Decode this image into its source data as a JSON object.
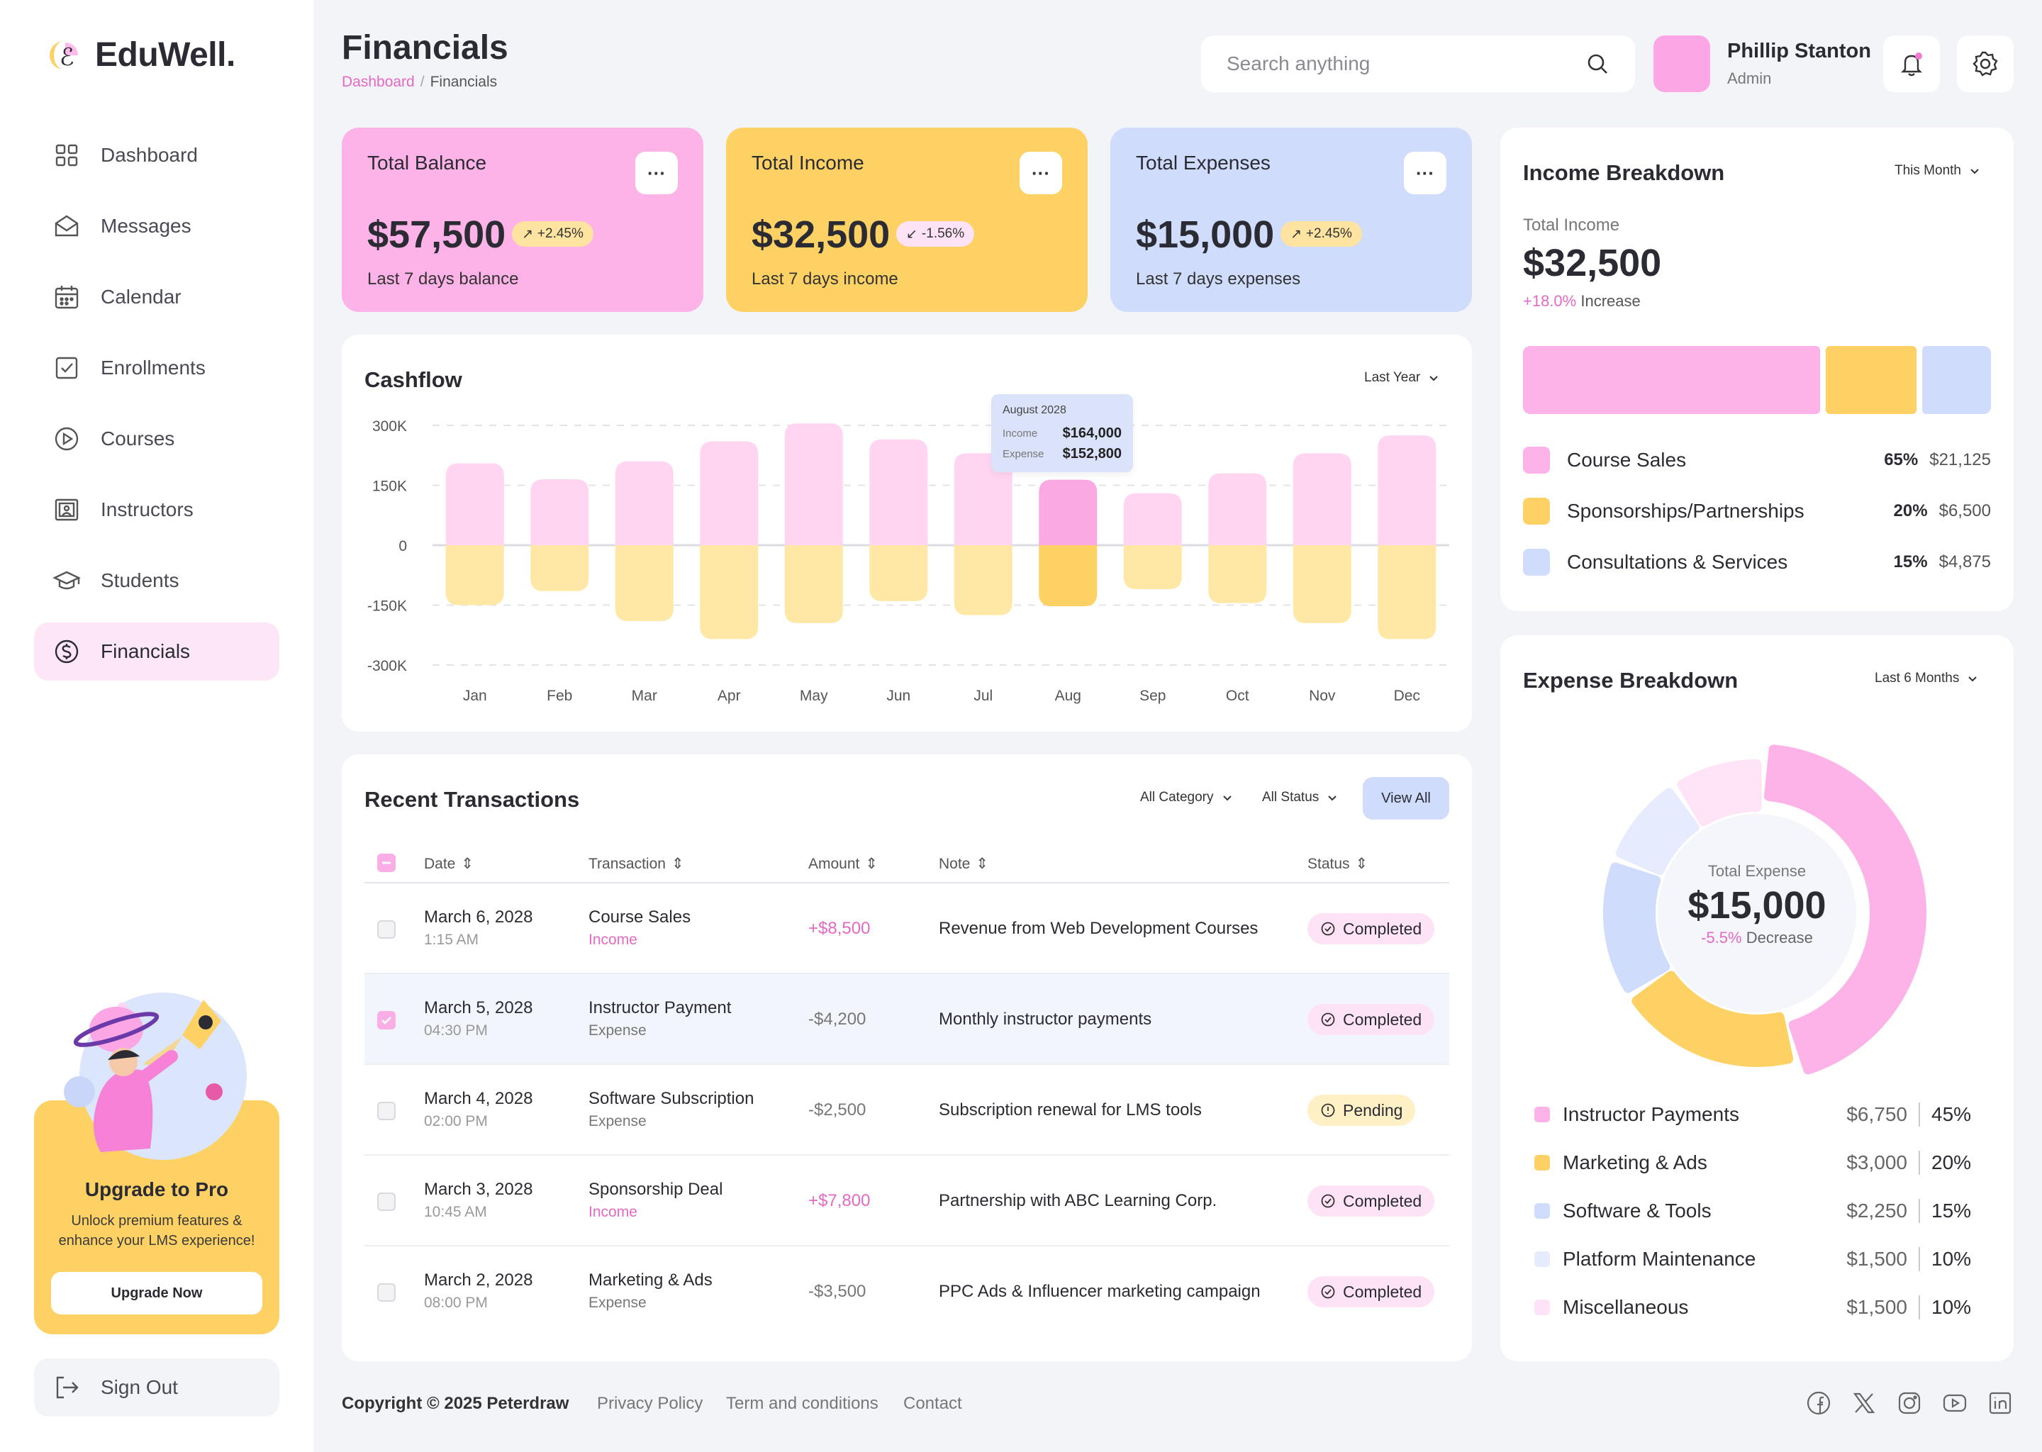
{
  "brand": {
    "name": "EduWell."
  },
  "nav": {
    "items": [
      {
        "label": "Dashboard",
        "icon": "grid-icon"
      },
      {
        "label": "Messages",
        "icon": "mail-icon"
      },
      {
        "label": "Calendar",
        "icon": "calendar-icon"
      },
      {
        "label": "Enrollments",
        "icon": "checkbox-icon"
      },
      {
        "label": "Courses",
        "icon": "play-icon"
      },
      {
        "label": "Instructors",
        "icon": "presentation-icon"
      },
      {
        "label": "Students",
        "icon": "graduation-cap-icon"
      },
      {
        "label": "Financials",
        "icon": "dollar-icon",
        "active": true
      }
    ]
  },
  "promo": {
    "title": "Upgrade to Pro",
    "subtitle": "Unlock premium features & enhance your LMS experience!",
    "button": "Upgrade Now"
  },
  "signout": {
    "label": "Sign Out"
  },
  "header": {
    "title": "Financials",
    "breadcrumb": {
      "parent": "Dashboard",
      "separator": "/",
      "current": "Financials"
    },
    "search_placeholder": "Search anything"
  },
  "user": {
    "name": "Phillip Stanton",
    "role": "Admin"
  },
  "stats": [
    {
      "title": "Total Balance",
      "value": "$57,500",
      "badge": "+2.45%",
      "trend": "up",
      "subtitle": "Last 7 days balance",
      "color": "#fdb2e8"
    },
    {
      "title": "Total Income",
      "value": "$32,500",
      "badge": "-1.56%",
      "trend": "down",
      "subtitle": "Last 7 days income",
      "color": "#fed165"
    },
    {
      "title": "Total Expenses",
      "value": "$15,000",
      "badge": "+2.45%",
      "trend": "up",
      "subtitle": "Last 7 days expenses",
      "color": "#cfdcfc"
    }
  ],
  "cashflow": {
    "title": "Cashflow",
    "filter": "Last Year",
    "tooltip": {
      "month": "August 2028",
      "income_label": "Income",
      "income": "$164,000",
      "expense_label": "Expense",
      "expense": "$152,800"
    }
  },
  "chart_data": {
    "type": "bar",
    "title": "Cashflow",
    "categories": [
      "Jan",
      "Feb",
      "Mar",
      "Apr",
      "May",
      "Jun",
      "Jul",
      "Aug",
      "Sep",
      "Oct",
      "Nov",
      "Dec"
    ],
    "series": [
      {
        "name": "Income",
        "values": [
          205000,
          165000,
          210000,
          260000,
          305000,
          265000,
          230000,
          164000,
          130000,
          180000,
          230000,
          275000
        ]
      },
      {
        "name": "Expense",
        "values": [
          -150000,
          -115000,
          -190000,
          -235000,
          -195000,
          -140000,
          -175000,
          -152800,
          -110000,
          -145000,
          -195000,
          -235000
        ]
      }
    ],
    "yticks": [
      "300K",
      "150K",
      "0",
      "-150K",
      "-300K"
    ],
    "ylim": [
      -300000,
      300000
    ],
    "highlight": "Aug",
    "colors": {
      "income": "#ffd5f2",
      "income_hl": "#fba9e3",
      "expense": "#ffe7a6",
      "expense_hl": "#fed165"
    }
  },
  "income_breakdown": {
    "title": "Income Breakdown",
    "filter": "This Month",
    "total_label": "Total Income",
    "total": "$32,500",
    "change": "+18.0%",
    "change_label": "Increase",
    "items": [
      {
        "label": "Course Sales",
        "pct": "65%",
        "amount": "$21,125",
        "share": 0.65,
        "color": "#fdb2e8"
      },
      {
        "label": "Sponsorships/Partnerships",
        "pct": "20%",
        "amount": "$6,500",
        "share": 0.2,
        "color": "#fed165"
      },
      {
        "label": "Consultations & Services",
        "pct": "15%",
        "amount": "$4,875",
        "share": 0.15,
        "color": "#cfdcfc"
      }
    ]
  },
  "transactions": {
    "title": "Recent Transactions",
    "filter_category": "All Category",
    "filter_status": "All Status",
    "view_all": "View All",
    "columns": [
      "Date",
      "Transaction",
      "Amount",
      "Note",
      "Status"
    ],
    "rows": [
      {
        "date": "March 6, 2028",
        "time": "1:15 AM",
        "name": "Course Sales",
        "type": "Income",
        "amount": "+$8,500",
        "note": "Revenue from Web Development Courses",
        "status": "Completed",
        "checked": false
      },
      {
        "date": "March 5, 2028",
        "time": "04:30 PM",
        "name": "Instructor Payment",
        "type": "Expense",
        "amount": "-$4,200",
        "note": "Monthly instructor payments",
        "status": "Completed",
        "checked": true
      },
      {
        "date": "March 4, 2028",
        "time": "02:00 PM",
        "name": "Software Subscription",
        "type": "Expense",
        "amount": "-$2,500",
        "note": "Subscription renewal for LMS tools",
        "status": "Pending",
        "checked": false
      },
      {
        "date": "March 3, 2028",
        "time": "10:45 AM",
        "name": "Sponsorship Deal",
        "type": "Income",
        "amount": "+$7,800",
        "note": "Partnership with ABC Learning Corp.",
        "status": "Completed",
        "checked": false
      },
      {
        "date": "March 2, 2028",
        "time": "08:00 PM",
        "name": "Marketing & Ads",
        "type": "Expense",
        "amount": "-$3,500",
        "note": "PPC Ads & Influencer marketing campaign",
        "status": "Completed",
        "checked": false
      }
    ]
  },
  "expense_breakdown": {
    "title": "Expense Breakdown",
    "filter": "Last 6 Months",
    "center_label": "Total Expense",
    "total": "$15,000",
    "change": "-5.5%",
    "change_label": "Decrease",
    "items": [
      {
        "label": "Instructor Payments",
        "amount": "$6,750",
        "pct": "45%",
        "share": 0.45,
        "color": "#fdb2e8"
      },
      {
        "label": "Marketing & Ads",
        "amount": "$3,000",
        "pct": "20%",
        "share": 0.2,
        "color": "#fed165"
      },
      {
        "label": "Software & Tools",
        "amount": "$2,250",
        "pct": "15%",
        "share": 0.15,
        "color": "#cfdcfc"
      },
      {
        "label": "Platform Maintenance",
        "amount": "$1,500",
        "pct": "10%",
        "share": 0.1,
        "color": "#e6ecfd"
      },
      {
        "label": "Miscellaneous",
        "amount": "$1,500",
        "pct": "10%",
        "share": 0.1,
        "color": "#ffe3f6"
      }
    ]
  },
  "footer": {
    "copyright": "Copyright © 2025 Peterdraw",
    "links": [
      "Privacy Policy",
      "Term and conditions",
      "Contact"
    ],
    "social": [
      "facebook-icon",
      "x-icon",
      "instagram-icon",
      "youtube-icon",
      "linkedin-icon"
    ]
  }
}
